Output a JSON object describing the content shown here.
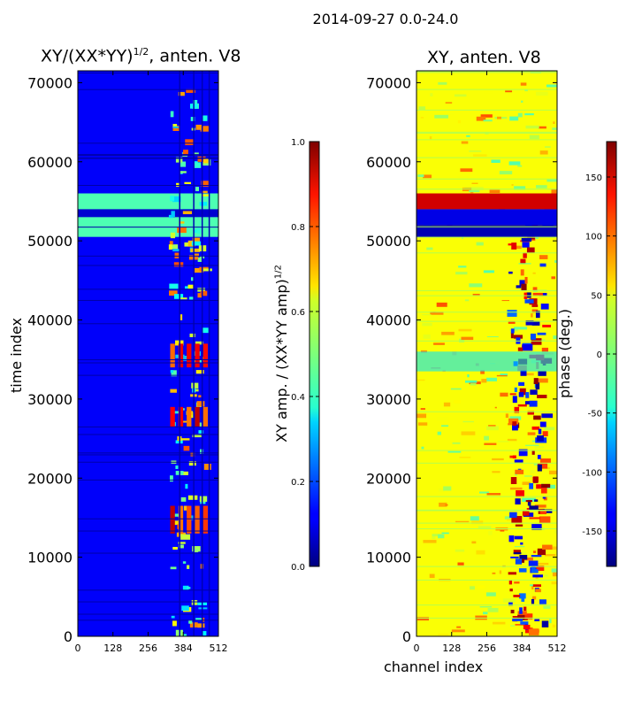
{
  "suptitle": "2014-09-27 0.0-24.0",
  "chart_data": [
    {
      "type": "heatmap",
      "title_main": "XY/(XX*YY)",
      "title_exp": "1/2",
      "title_suffix": ", anten. V8",
      "ylabel": "time index",
      "xlabel": "",
      "x_ticks": [
        0,
        128,
        256,
        384,
        512
      ],
      "y_ticks": [
        0,
        10000,
        20000,
        30000,
        40000,
        50000,
        60000,
        70000
      ],
      "xlim": [
        0,
        512
      ],
      "ylim": [
        0,
        71500
      ],
      "colorbar": {
        "label": "XY amp. / (XX*YY amp)",
        "label_exp": "1/2",
        "range": [
          0.0,
          1.0
        ],
        "ticks": [
          "0.0",
          "0.2",
          "0.4",
          "0.6",
          "0.8",
          "1.0"
        ],
        "colormap": "jet"
      },
      "features": [
        {
          "desc": "high band",
          "t_range": [
            50500,
            56000
          ],
          "value": 0.45
        },
        {
          "desc": "bright channels",
          "x_range": [
            330,
            480
          ],
          "t_ranges": [
            [
              26500,
              29000
            ],
            [
              34000,
              37000
            ],
            [
              13000,
              16500
            ]
          ],
          "value": 0.85
        }
      ]
    },
    {
      "type": "heatmap",
      "title": "XY, anten. V8",
      "ylabel": "",
      "xlabel": "channel index",
      "x_ticks": [
        0,
        128,
        256,
        384,
        512
      ],
      "y_ticks": [
        0,
        10000,
        20000,
        30000,
        40000,
        50000,
        60000,
        70000
      ],
      "xlim": [
        0,
        512
      ],
      "ylim": [
        0,
        71500
      ],
      "colorbar": {
        "label": "phase (deg.)",
        "range": [
          -180,
          180
        ],
        "ticks": [
          "-150",
          "-100",
          "-50",
          "0",
          "50",
          "100",
          "150"
        ],
        "colormap": "jet"
      }
    }
  ]
}
